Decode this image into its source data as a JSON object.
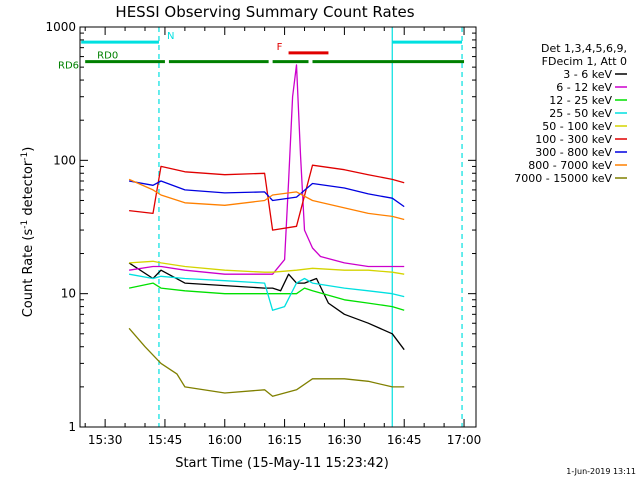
{
  "chart_data": {
    "type": "line",
    "title": "HESSI Observing Summary Count Rates",
    "xlabel": "Start Time (15-May-11 15:23:42)",
    "ylabel": "Count Rate (s",
    "ylabel_sup": "-1",
    "ylabel_tail": " detector",
    "ylabel_end": ")",
    "yscale": "log",
    "xlim": [
      "15:23:42",
      "17:03:00"
    ],
    "ylim": [
      1,
      1000
    ],
    "x_ticks": [
      "15:30",
      "15:45",
      "16:00",
      "16:15",
      "16:30",
      "16:45",
      "17:00"
    ],
    "y_ticks": [
      "1",
      "10",
      "100",
      "1000"
    ],
    "legend_header": [
      "Det 1,3,4,5,6,9,",
      "FDecim 1, Att 0"
    ],
    "series": [
      {
        "name": "3 - 6 keV",
        "color": "#000000",
        "points": [
          [
            "15:36",
            17
          ],
          [
            "15:42",
            13
          ],
          [
            "15:44",
            15
          ],
          [
            "15:50",
            12
          ],
          [
            "16:00",
            11.5
          ],
          [
            "16:10",
            11
          ],
          [
            "16:12",
            11
          ],
          [
            "16:14",
            10.5
          ],
          [
            "16:16",
            14
          ],
          [
            "16:18",
            12
          ],
          [
            "16:20",
            12
          ],
          [
            "16:23",
            13
          ],
          [
            "16:26",
            8.5
          ],
          [
            "16:30",
            7
          ],
          [
            "16:36",
            6
          ],
          [
            "16:42",
            5
          ],
          [
            "16:45",
            3.8
          ]
        ]
      },
      {
        "name": "6 - 12 keV",
        "color": "#cc00cc",
        "points": [
          [
            "15:36",
            15
          ],
          [
            "15:42",
            16
          ],
          [
            "15:44",
            16
          ],
          [
            "15:50",
            15
          ],
          [
            "16:00",
            14
          ],
          [
            "16:10",
            14
          ],
          [
            "16:12",
            14
          ],
          [
            "16:15",
            18
          ],
          [
            "16:16",
            70
          ],
          [
            "16:17",
            300
          ],
          [
            "16:18",
            520
          ],
          [
            "16:19",
            110
          ],
          [
            "16:20",
            30
          ],
          [
            "16:22",
            22
          ],
          [
            "16:24",
            19
          ],
          [
            "16:30",
            17
          ],
          [
            "16:36",
            16
          ],
          [
            "16:42",
            16
          ],
          [
            "16:45",
            16
          ]
        ]
      },
      {
        "name": "12 - 25 keV",
        "color": "#00e000",
        "points": [
          [
            "15:36",
            11
          ],
          [
            "15:42",
            12
          ],
          [
            "15:44",
            11
          ],
          [
            "15:50",
            10.5
          ],
          [
            "16:00",
            10
          ],
          [
            "16:10",
            10
          ],
          [
            "16:12",
            10
          ],
          [
            "16:18",
            10
          ],
          [
            "16:20",
            11
          ],
          [
            "16:22",
            10.5
          ],
          [
            "16:30",
            9
          ],
          [
            "16:36",
            8.5
          ],
          [
            "16:42",
            8
          ],
          [
            "16:45",
            7.5
          ]
        ]
      },
      {
        "name": "25 - 50 keV",
        "color": "#00e0e0",
        "points": [
          [
            "15:36",
            14
          ],
          [
            "15:42",
            13
          ],
          [
            "15:44",
            13.5
          ],
          [
            "15:50",
            13
          ],
          [
            "16:00",
            12.5
          ],
          [
            "16:10",
            12
          ],
          [
            "16:12",
            7.5
          ],
          [
            "16:15",
            8
          ],
          [
            "16:18",
            12
          ],
          [
            "16:20",
            13
          ],
          [
            "16:22",
            12
          ],
          [
            "16:30",
            11
          ],
          [
            "16:36",
            10.5
          ],
          [
            "16:42",
            10
          ],
          [
            "16:45",
            9.5
          ]
        ]
      },
      {
        "name": "50 - 100 keV",
        "color": "#d4d400",
        "points": [
          [
            "15:36",
            17
          ],
          [
            "15:42",
            17.5
          ],
          [
            "15:44",
            17
          ],
          [
            "15:50",
            16
          ],
          [
            "16:00",
            15
          ],
          [
            "16:10",
            14.5
          ],
          [
            "16:12",
            14.5
          ],
          [
            "16:18",
            15
          ],
          [
            "16:22",
            15.5
          ],
          [
            "16:30",
            15
          ],
          [
            "16:36",
            15
          ],
          [
            "16:42",
            14.5
          ],
          [
            "16:45",
            14
          ]
        ]
      },
      {
        "name": "100 - 300 keV",
        "color": "#e00000",
        "points": [
          [
            "15:36",
            42
          ],
          [
            "15:42",
            40
          ],
          [
            "15:44",
            90
          ],
          [
            "15:50",
            82
          ],
          [
            "16:00",
            78
          ],
          [
            "16:10",
            80
          ],
          [
            "16:12",
            30
          ],
          [
            "16:18",
            32
          ],
          [
            "16:22",
            92
          ],
          [
            "16:30",
            85
          ],
          [
            "16:36",
            78
          ],
          [
            "16:42",
            72
          ],
          [
            "16:45",
            68
          ]
        ]
      },
      {
        "name": "300 - 800 keV",
        "color": "#0000e0",
        "points": [
          [
            "15:36",
            70
          ],
          [
            "15:42",
            65
          ],
          [
            "15:44",
            70
          ],
          [
            "15:50",
            60
          ],
          [
            "16:00",
            57
          ],
          [
            "16:10",
            58
          ],
          [
            "16:12",
            50
          ],
          [
            "16:18",
            53
          ],
          [
            "16:22",
            67
          ],
          [
            "16:30",
            62
          ],
          [
            "16:36",
            56
          ],
          [
            "16:42",
            52
          ],
          [
            "16:45",
            45
          ]
        ]
      },
      {
        "name": "800 - 7000 keV",
        "color": "#ff8000",
        "points": [
          [
            "15:36",
            72
          ],
          [
            "15:42",
            60
          ],
          [
            "15:44",
            55
          ],
          [
            "15:50",
            48
          ],
          [
            "16:00",
            46
          ],
          [
            "16:10",
            50
          ],
          [
            "16:12",
            55
          ],
          [
            "16:18",
            58
          ],
          [
            "16:22",
            50
          ],
          [
            "16:30",
            44
          ],
          [
            "16:36",
            40
          ],
          [
            "16:42",
            38
          ],
          [
            "16:45",
            36
          ]
        ]
      },
      {
        "name": "7000 - 15000 keV",
        "color": "#808000",
        "points": [
          [
            "15:36",
            5.5
          ],
          [
            "15:40",
            4
          ],
          [
            "15:44",
            3
          ],
          [
            "15:48",
            2.5
          ],
          [
            "15:50",
            2
          ],
          [
            "16:00",
            1.8
          ],
          [
            "16:10",
            1.9
          ],
          [
            "16:12",
            1.7
          ],
          [
            "16:18",
            1.9
          ],
          [
            "16:22",
            2.3
          ],
          [
            "16:30",
            2.3
          ],
          [
            "16:36",
            2.2
          ],
          [
            "16:42",
            2
          ],
          [
            "16:45",
            2
          ]
        ]
      }
    ],
    "vertical_lines": [
      {
        "time": "15:43:30",
        "color": "#00e0e0"
      },
      {
        "time": "16:42:00",
        "color": "#00e0e0"
      },
      {
        "time": "16:59:30",
        "color": "#00e0e0"
      }
    ],
    "flag_bars": [
      {
        "label": "N",
        "color": "#00e0e0",
        "label_color": "#00e0e0",
        "level": 770,
        "segments": [
          [
            "15:24",
            "15:43:30"
          ],
          [
            "16:42",
            "16:59:30"
          ]
        ]
      },
      {
        "label": "F",
        "color": "#e00000",
        "label_color": "#e00000",
        "level": 640,
        "segments": [
          [
            "16:16",
            "16:26"
          ]
        ]
      },
      {
        "label": "RD0",
        "color": "#008000",
        "label_color": "#008000",
        "level": 550,
        "segments": [
          [
            "15:25",
            "15:45"
          ],
          [
            "15:46",
            "16:11"
          ],
          [
            "16:12",
            "16:21"
          ],
          [
            "16:22",
            "17:00"
          ]
        ]
      }
    ],
    "flag_side_label": "RD6",
    "grid": false,
    "legend_position": "right"
  },
  "footer": {
    "date_stamp": "1-Jun-2019 13:11"
  }
}
